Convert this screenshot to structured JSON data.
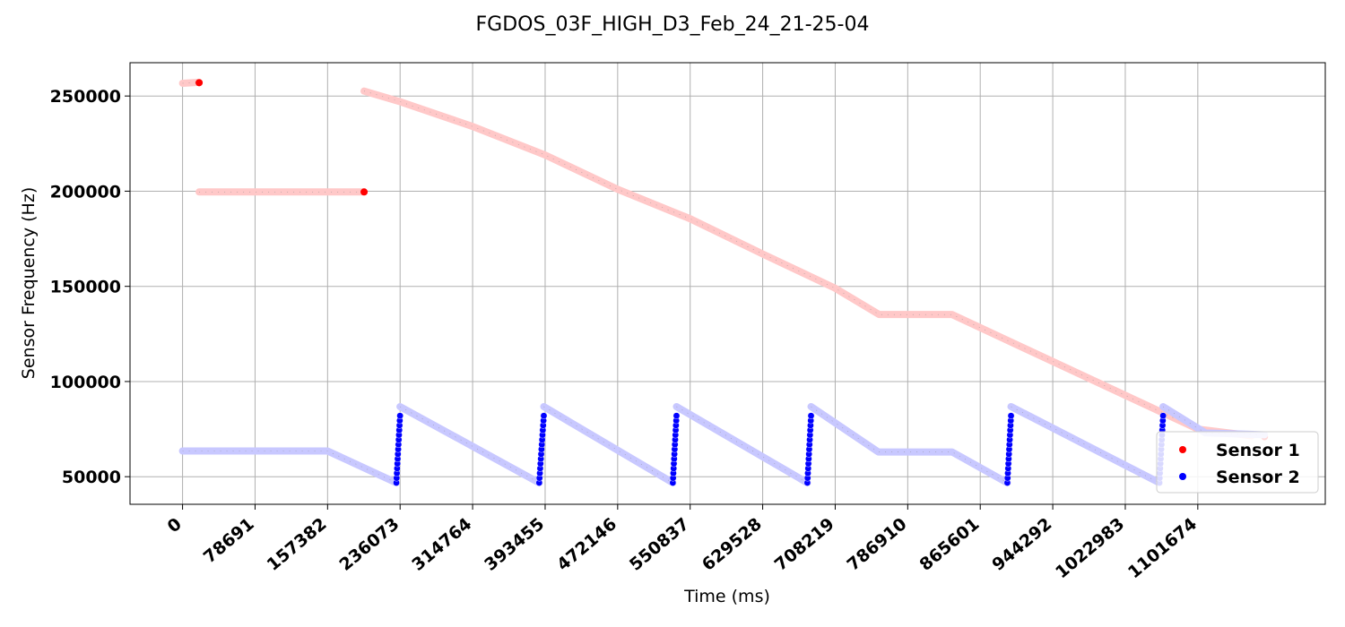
{
  "chart_data": {
    "type": "scatter",
    "title": "FGDOS_03F_HIGH_D3_Feb_24_21-25-04",
    "xlabel": "Time (ms)",
    "ylabel": "Sensor Frequency (Hz)",
    "xlim": [
      -57000,
      1240000
    ],
    "ylim": [
      35500,
      267500
    ],
    "x_ticks": [
      0,
      78691,
      157382,
      236073,
      314764,
      393455,
      472146,
      550837,
      629528,
      708219,
      786910,
      865601,
      944292,
      1022983,
      1101674
    ],
    "y_ticks": [
      50000,
      100000,
      150000,
      200000,
      250000
    ],
    "grid": true,
    "legend_position": "lower-right",
    "series": [
      {
        "name": "Sensor 1",
        "color": "#ff0000",
        "fade_color": "#ffc8c8",
        "segments": [
          [
            [
              0,
              256700
            ],
            [
              18000,
              257200
            ]
          ],
          [
            [
              18000,
              199600
            ],
            [
              197000,
              199600
            ]
          ],
          [
            [
              197000,
              252600
            ],
            [
              236073,
              247000
            ],
            [
              314764,
              234000
            ],
            [
              393455,
              219000
            ],
            [
              472146,
              201000
            ],
            [
              550837,
              185500
            ],
            [
              629528,
              167000
            ],
            [
              708219,
              149000
            ],
            [
              756000,
              135200
            ],
            [
              835000,
              135200
            ],
            [
              1101674,
              75000
            ],
            [
              1160000,
              71500
            ]
          ]
        ],
        "highlights": [
          [
            [
              18000,
              257000
            ]
          ],
          [
            [
              197000,
              199600
            ]
          ],
          [
            [
              1174000,
              71000
            ]
          ]
        ]
      },
      {
        "name": "Sensor 2",
        "color": "#0000ff",
        "fade_color": "#c8c8ff",
        "segments": [
          [
            [
              0,
              63500
            ],
            [
              157382,
              63500
            ],
            [
              232000,
              46800
            ]
          ],
          [
            [
              236000,
              86800
            ],
            [
              387000,
              46800
            ]
          ],
          [
            [
              392000,
              86800
            ],
            [
              532000,
              46800
            ]
          ],
          [
            [
              536000,
              86800
            ],
            [
              678000,
              46800
            ]
          ],
          [
            [
              682000,
              86800
            ],
            [
              755000,
              63000
            ],
            [
              835000,
              63000
            ],
            [
              895000,
              46800
            ]
          ],
          [
            [
              899000,
              86800
            ],
            [
              1060000,
              46800
            ]
          ],
          [
            [
              1064000,
              86800
            ],
            [
              1110000,
              73000
            ],
            [
              1174000,
              72000
            ]
          ]
        ],
        "ramps": [
          [
            232000,
            46800,
            236000,
            82000
          ],
          [
            387000,
            46800,
            392000,
            82000
          ],
          [
            532000,
            46800,
            536000,
            82000
          ],
          [
            678000,
            46800,
            682000,
            82000
          ],
          [
            895000,
            46800,
            899000,
            82000
          ],
          [
            1060000,
            46800,
            1064000,
            82000
          ]
        ]
      }
    ]
  }
}
